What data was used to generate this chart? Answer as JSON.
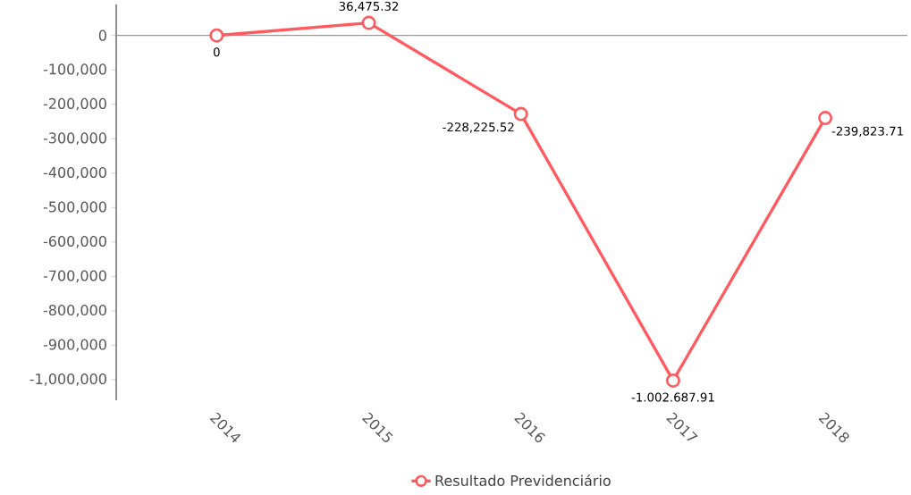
{
  "chart_data": {
    "type": "line",
    "categories": [
      "2014",
      "2015",
      "2016",
      "2017",
      "2018"
    ],
    "series": [
      {
        "name": "Resultado Previdenciário",
        "color": "#ff5a5f",
        "values": [
          0,
          36475.32,
          -228225.52,
          -1002687.91,
          -239823.71
        ],
        "value_labels": [
          "0",
          "36,475.32",
          "-228,225.52",
          "-1.002.687.91",
          "-239,823.71"
        ]
      }
    ],
    "ylim": [
      -1060000,
      90000
    ],
    "yticks": [
      {
        "value": 0,
        "label": "0"
      },
      {
        "value": -100000,
        "label": "-100,000"
      },
      {
        "value": -200000,
        "label": "-200,000"
      },
      {
        "value": -300000,
        "label": "-300,000"
      },
      {
        "value": -400000,
        "label": "-400,000"
      },
      {
        "value": -500000,
        "label": "-500,000"
      },
      {
        "value": -600000,
        "label": "-600,000"
      },
      {
        "value": -700000,
        "label": "-700,000"
      },
      {
        "value": -800000,
        "label": "-800,000"
      },
      {
        "value": -900000,
        "label": "-900,000"
      },
      {
        "value": -1000000,
        "label": "-1,000,000"
      }
    ],
    "ref_lines": [
      {
        "axis": "y",
        "value": 0,
        "color": "#999999"
      }
    ],
    "grid": false,
    "legend": "bottom",
    "marker": "circle",
    "line_style": "solid"
  }
}
